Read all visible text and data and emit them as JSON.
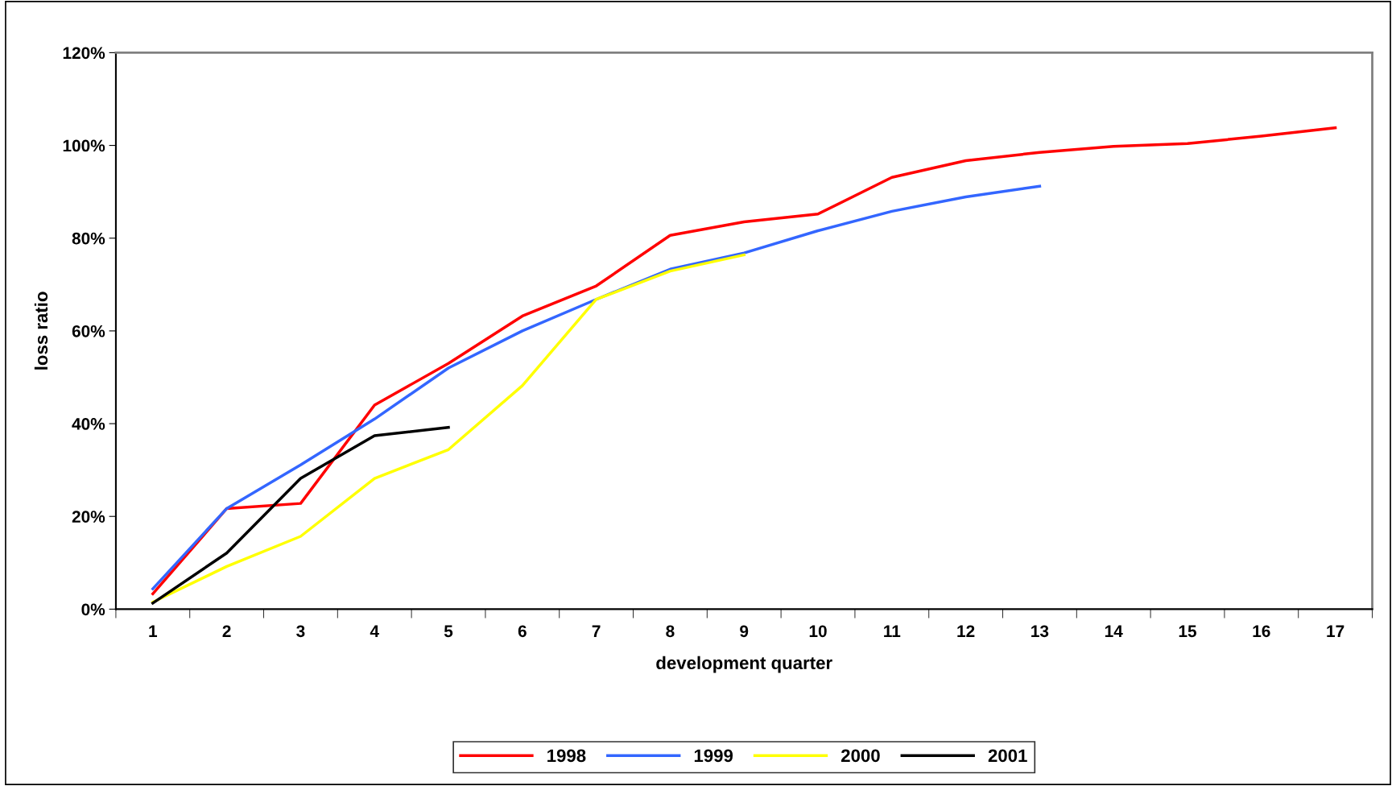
{
  "chart_data": {
    "type": "line",
    "xlabel": "development quarter",
    "ylabel": "loss ratio",
    "categories": [
      "1",
      "2",
      "3",
      "4",
      "5",
      "6",
      "7",
      "8",
      "9",
      "10",
      "11",
      "12",
      "13",
      "14",
      "15",
      "16",
      "17"
    ],
    "series": [
      {
        "name": "1998",
        "color": "#ff0000",
        "values": [
          3.3,
          21.7,
          22.8,
          44,
          53,
          63.2,
          69.7,
          80.6,
          83.5,
          85.2,
          93.1,
          96.7,
          98.5,
          99.8,
          100.4,
          102,
          103.8
        ]
      },
      {
        "name": "1999",
        "color": "#3366ff",
        "values": [
          4.4,
          21.7,
          31.1,
          41,
          52,
          60,
          66.8,
          73.3,
          76.8,
          81.6,
          85.8,
          88.9,
          91.2,
          null,
          null,
          null,
          null
        ]
      },
      {
        "name": "2000",
        "color": "#ffff00",
        "values": [
          1.5,
          9.2,
          15.7,
          28.2,
          34.4,
          48.2,
          66.8,
          72.9,
          76.4,
          null,
          null,
          null,
          null,
          null,
          null,
          null,
          null
        ]
      },
      {
        "name": "2001",
        "color": "#000000",
        "values": [
          1.3,
          12.1,
          28.2,
          37.4,
          39.2,
          null,
          null,
          null,
          null,
          null,
          null,
          null,
          null,
          null,
          null,
          null,
          null
        ]
      }
    ],
    "ylim": [
      0,
      120
    ],
    "yticks": [
      {
        "value": 0,
        "label": "0%"
      },
      {
        "value": 20,
        "label": "20%"
      },
      {
        "value": 40,
        "label": "40%"
      },
      {
        "value": 60,
        "label": "60%"
      },
      {
        "value": 80,
        "label": "80%"
      },
      {
        "value": 100,
        "label": "100%"
      },
      {
        "value": 120,
        "label": "120%"
      }
    ],
    "grid": false,
    "legend": "bottom",
    "marker": "none",
    "line_style": "solid"
  }
}
